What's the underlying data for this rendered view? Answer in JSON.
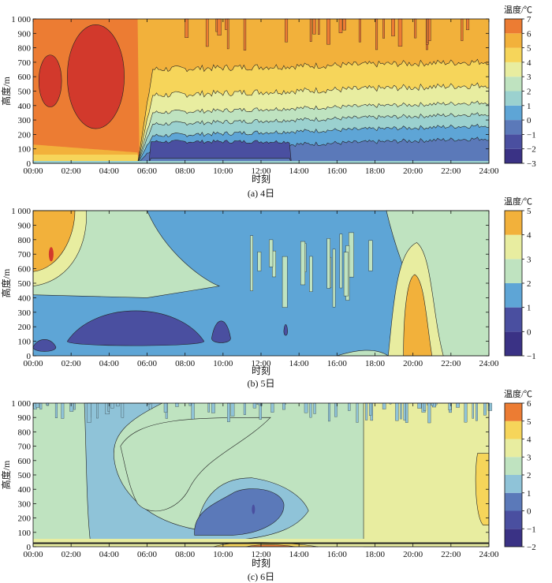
{
  "chart_data": [
    {
      "type": "heatmap",
      "caption": "(a) 4日",
      "xlabel": "时刻",
      "ylabel": "高度/m",
      "colorbar_title": "温度/℃",
      "x_ticks": [
        "00:00",
        "02:00",
        "04:00",
        "06:00",
        "08:00",
        "10:00",
        "12:00",
        "14:00",
        "16:00",
        "18:00",
        "20:00",
        "22:00",
        "24:00"
      ],
      "y_ticks": [
        "0",
        "100",
        "200",
        "300",
        "400",
        "500",
        "600",
        "700",
        "800",
        "900",
        "1 000"
      ],
      "xlim": [
        0,
        24
      ],
      "ylim": [
        0,
        1000
      ],
      "levels": [
        -3,
        -2,
        -1,
        0,
        1,
        2,
        3,
        4,
        5,
        6,
        7
      ],
      "colors": [
        "#3a3285",
        "#4a4fa0",
        "#5b79b9",
        "#5ea5d6",
        "#9bd1cf",
        "#bfe3c0",
        "#e8eda0",
        "#f6d55a",
        "#f2b13b",
        "#ec7c33",
        "#d2392c"
      ],
      "colorbar_ticks": [
        "−3",
        "−2",
        "−1",
        "0",
        "1",
        "2",
        "3",
        "4",
        "5",
        "6",
        "7"
      ],
      "profiles": [
        {
          "time": 0,
          "levels": [
            20,
            80,
            150,
            600,
            900,
            1000
          ]
        },
        {
          "time": 1,
          "levels": [
            20,
            70,
            140,
            520,
            950,
            1000
          ]
        },
        {
          "time": 2,
          "levels": [
            20,
            60,
            120,
            350,
            1000,
            1000
          ]
        },
        {
          "time": 3,
          "levels": [
            20,
            50,
            90,
            180,
            1000,
            1000
          ]
        },
        {
          "time": 4,
          "levels": [
            20,
            40,
            70,
            150,
            1000,
            1000
          ]
        },
        {
          "time": 5,
          "levels": [
            10,
            30,
            60,
            180,
            960,
            1000
          ]
        },
        {
          "time": 5.5,
          "levels": [
            0,
            20,
            50,
            260,
            1000,
            1000
          ]
        },
        {
          "time": 6,
          "levels": [
            0,
            10,
            30,
            60,
            150,
            280,
            360,
            500,
            1000,
            1000
          ]
        },
        {
          "time": 8,
          "levels": [
            0,
            10,
            30,
            60,
            170,
            270,
            360,
            560,
            1000,
            1000
          ]
        },
        {
          "time": 10,
          "levels": [
            0,
            10,
            40,
            80,
            190,
            280,
            360,
            560,
            1000,
            1000
          ]
        },
        {
          "time": 12,
          "levels": [
            0,
            10,
            40,
            90,
            200,
            290,
            380,
            560,
            1000,
            1000
          ]
        },
        {
          "time": 14,
          "levels": [
            0,
            10,
            40,
            100,
            200,
            310,
            400,
            590,
            1000,
            1000
          ]
        },
        {
          "time": 16,
          "levels": [
            0,
            10,
            30,
            80,
            220,
            300,
            420,
            620,
            1000,
            1000
          ]
        },
        {
          "time": 18,
          "levels": [
            0,
            10,
            30,
            80,
            200,
            300,
            440,
            620,
            1000,
            1000
          ]
        },
        {
          "time": 20,
          "levels": [
            0,
            10,
            30,
            80,
            210,
            320,
            460,
            650,
            1000,
            1000
          ]
        },
        {
          "time": 22,
          "levels": [
            0,
            10,
            30,
            80,
            210,
            320,
            470,
            680,
            1000,
            1000
          ]
        },
        {
          "time": 24,
          "levels": [
            0,
            10,
            30,
            80,
            220,
            330,
            480,
            700,
            1000,
            1000
          ]
        }
      ],
      "cold_cores": [
        {
          "t0": 6.1,
          "t1": 13.6,
          "z0": 40,
          "z1": 180
        }
      ]
    },
    {
      "type": "heatmap",
      "caption": "(b) 5日",
      "xlabel": "时刻",
      "ylabel": "高度/m",
      "colorbar_title": "温度/℃",
      "x_ticks": [
        "00:00",
        "02:00",
        "04:00",
        "06:00",
        "08:00",
        "10:00",
        "12:00",
        "14:00",
        "16:00",
        "18:00",
        "20:00",
        "22:00",
        "24:00"
      ],
      "y_ticks": [
        "0",
        "100",
        "200",
        "300",
        "400",
        "500",
        "600",
        "700",
        "800",
        "900",
        "1 000"
      ],
      "xlim": [
        0,
        24
      ],
      "ylim": [
        0,
        1000
      ],
      "levels": [
        -1,
        0,
        1,
        2,
        3,
        4,
        5
      ],
      "colors": [
        "#3a3285",
        "#4a4fa0",
        "#5ea5d6",
        "#bfe3c0",
        "#e8eda0",
        "#f2b13b",
        "#d2392c"
      ],
      "colorbar_ticks": [
        "−1",
        "0",
        "1",
        "2",
        "3",
        "4",
        "5"
      ],
      "note": "warm plume near 20:00 reaching 4–5 ℃ below ~550 m"
    },
    {
      "type": "heatmap",
      "caption": "(c) 6日",
      "xlabel": "时刻",
      "ylabel": "高度/m",
      "colorbar_title": "温度/℃",
      "x_ticks": [
        "00:00",
        "02:00",
        "04:00",
        "06:00",
        "08:00",
        "10:00",
        "12:00",
        "14:00",
        "16:00",
        "18:00",
        "20:00",
        "22:00",
        "24:00"
      ],
      "y_ticks": [
        "0",
        "100",
        "200",
        "300",
        "400",
        "500",
        "600",
        "700",
        "800",
        "900",
        "1 000"
      ],
      "xlim": [
        0,
        24
      ],
      "ylim": [
        0,
        1000
      ],
      "levels": [
        -2,
        -1,
        0,
        1,
        2,
        3,
        4,
        5,
        6
      ],
      "colors": [
        "#3a3285",
        "#4a4fa0",
        "#5b79b9",
        "#8fc3d8",
        "#bfe3c0",
        "#e8eda0",
        "#f6d55a",
        "#ec7c33",
        "#d2392c"
      ],
      "colorbar_ticks": [
        "−2",
        "−1",
        "0",
        "1",
        "2",
        "3",
        "4",
        "5",
        "6"
      ],
      "note": "cool core of 0–1 ℃ between 09:00 and 13:00 below 420 m; 3–4 ℃ after 17:30"
    }
  ]
}
